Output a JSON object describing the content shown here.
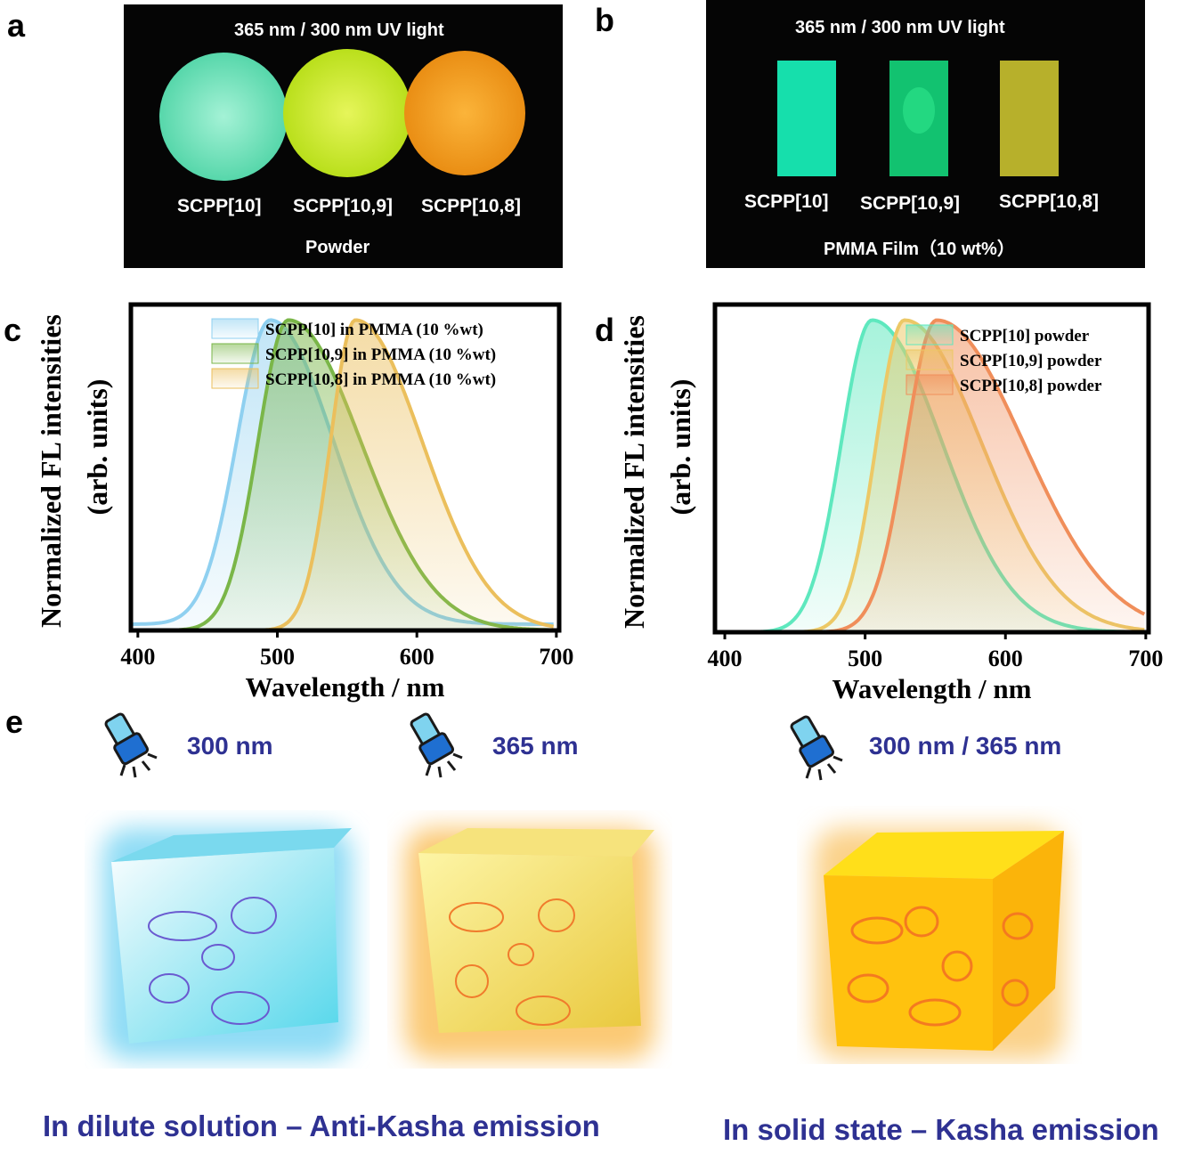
{
  "panels": {
    "a": {
      "letter": "a",
      "title": "365 nm / 300 nm UV light",
      "samples": [
        "SCPP[10]",
        "SCPP[10,9]",
        "SCPP[10,8]"
      ],
      "footer": "Powder",
      "colors": [
        "#7ee8c4",
        "#d9ef3a",
        "#f4a423"
      ]
    },
    "b": {
      "letter": "b",
      "title": "365 nm / 300 nm UV light",
      "samples": [
        "SCPP[10]",
        "SCPP[10,9]",
        "SCPP[10,8]"
      ],
      "footer": "PMMA Film（10 wt%）",
      "colors": [
        "#19e0ad",
        "#14c776",
        "#b8b22a"
      ]
    },
    "c": {
      "letter": "c"
    },
    "d": {
      "letter": "d"
    },
    "e": {
      "letter": "e",
      "wavelengths": [
        "300 nm",
        "365 nm",
        "300 nm / 365 nm"
      ],
      "captions": [
        "In dilute solution – Anti-Kasha emission",
        "In solid state – Kasha emission"
      ]
    }
  },
  "chart_data": [
    {
      "type": "area",
      "panel": "c",
      "ylabel_line1": "Normalized FL intensities",
      "ylabel_line2": "(arb. units)",
      "xlabel": "Wavelength / nm",
      "xlim": [
        395,
        702
      ],
      "ylim": [
        0,
        1.05
      ],
      "xticks": [
        "400",
        "500",
        "600",
        "700"
      ],
      "grid": false,
      "legend": "top-right",
      "series": [
        {
          "name": "SCPP[10] in PMMA (10 %wt)",
          "color": "#8fd0f0",
          "peak": 495,
          "widthL": 24,
          "widthR": 45,
          "baseline": 0.02
        },
        {
          "name": "SCPP[10,9] in PMMA (10 %wt)",
          "color": "#7ab648",
          "peak": 508,
          "widthL": 22,
          "widthR": 52,
          "baseline": 0.0
        },
        {
          "name": "SCPP[10,8] in PMMA (10 %wt)",
          "color": "#ebbf5c",
          "peak": 556,
          "widthL": 18,
          "widthR": 48,
          "baseline": 0.0
        }
      ]
    },
    {
      "type": "area",
      "panel": "d",
      "ylabel_line1": "Normalized FL intensities",
      "ylabel_line2": "(arb. units)",
      "xlabel": "Wavelength / nm",
      "xlim": [
        393,
        702
      ],
      "ylim": [
        0,
        1.05
      ],
      "xticks": [
        "400",
        "500",
        "600",
        "700"
      ],
      "grid": false,
      "legend": "top-right",
      "series": [
        {
          "name": "SCPP[10] powder",
          "color": "#5ee8be",
          "peak": 505,
          "widthL": 22,
          "widthR": 50,
          "baseline": 0.0
        },
        {
          "name": "SCPP[10,9] powder",
          "color": "#ecc866",
          "peak": 528,
          "widthL": 20,
          "widthR": 55,
          "baseline": 0.0
        },
        {
          "name": "SCPP[10,8] powder",
          "color": "#f08e5a",
          "peak": 551,
          "widthL": 22,
          "widthR": 62,
          "baseline": 0.0
        }
      ]
    }
  ]
}
